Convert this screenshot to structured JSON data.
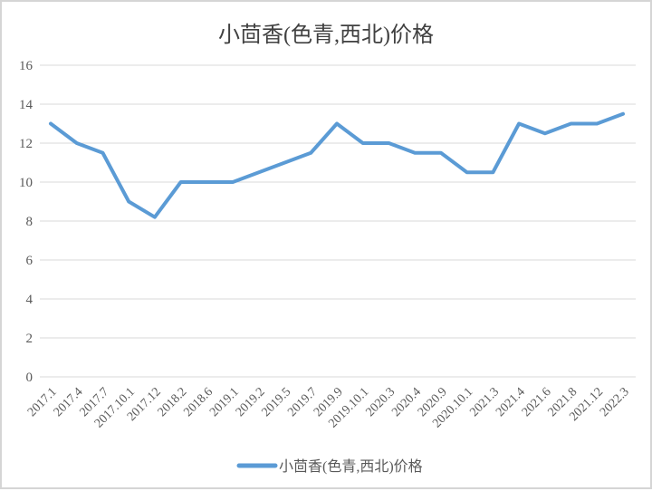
{
  "window": {
    "background_color": "#ffffff",
    "frame_border_color": "#d5d5d5"
  },
  "chart_data": {
    "type": "line",
    "title": "小茴香(色青,西北)价格",
    "xlabel": "",
    "ylabel": "",
    "categories": [
      "2017.1",
      "2017.4",
      "2017.7",
      "2017.10.1",
      "2017.12",
      "2018.2",
      "2018.6",
      "2019.1",
      "2019.2",
      "2019.5",
      "2019.7",
      "2019.9",
      "2019.10.1",
      "2020.3",
      "2020.4",
      "2020.9",
      "2020.10.1",
      "2021.3",
      "2021.4",
      "2021.6",
      "2021.8",
      "2021.12",
      "2022.3"
    ],
    "series": [
      {
        "name": "小茴香(色青,西北)价格",
        "color": "#5B9BD5",
        "values": [
          13,
          12,
          11.5,
          9,
          8.2,
          10,
          10,
          10,
          10.5,
          11,
          11.5,
          13,
          12,
          12,
          11.5,
          11.5,
          10.5,
          10.5,
          13,
          12.5,
          13,
          13,
          13.5
        ]
      }
    ],
    "ylim": [
      0,
      16
    ],
    "ytick_step": 2,
    "yticks": [
      0,
      2,
      4,
      6,
      8,
      10,
      12,
      14,
      16
    ],
    "grid": true,
    "gridline_color": "#D9D9D9",
    "axis_text_color": "#595959",
    "title_color": "#404040",
    "legend_position": "bottom",
    "x_label_rotation_deg": -45
  },
  "legend": {
    "label": "小茴香(色青,西北)价格"
  }
}
